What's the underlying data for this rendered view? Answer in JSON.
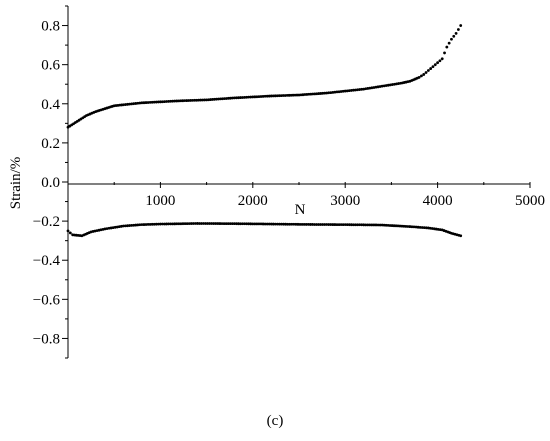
{
  "chart_data": {
    "type": "scatter",
    "xlabel": "N",
    "ylabel": "Strain/%",
    "caption": "(c)",
    "xlim": [
      0,
      5000
    ],
    "ylim": [
      -0.9,
      0.9
    ],
    "x_ticks": [
      1000,
      2000,
      3000,
      4000,
      5000
    ],
    "x_tick_labels": [
      "1000",
      "2000",
      "3000",
      "4000",
      "5000"
    ],
    "y_ticks": [
      0.8,
      0.6,
      0.4,
      0.2,
      0.0,
      -0.2,
      -0.4,
      -0.6,
      -0.8
    ],
    "y_tick_labels": [
      "0.8",
      "0.6",
      "0.4",
      "0.2",
      "0.0",
      "−0.2",
      "−0.4",
      "−0.6",
      "−0.8"
    ],
    "marker_color": "#000000",
    "series": [
      {
        "points": [
          [
            0,
            0.28
          ],
          [
            100,
            0.31
          ],
          [
            200,
            0.34
          ],
          [
            300,
            0.36
          ],
          [
            400,
            0.375
          ],
          [
            500,
            0.39
          ],
          [
            600,
            0.395
          ],
          [
            800,
            0.405
          ],
          [
            1000,
            0.41
          ],
          [
            1200,
            0.415
          ],
          [
            1500,
            0.42
          ],
          [
            1800,
            0.43
          ],
          [
            2000,
            0.435
          ],
          [
            2200,
            0.44
          ],
          [
            2500,
            0.445
          ],
          [
            2800,
            0.455
          ],
          [
            3000,
            0.465
          ],
          [
            3200,
            0.475
          ],
          [
            3400,
            0.49
          ],
          [
            3600,
            0.505
          ],
          [
            3700,
            0.515
          ],
          [
            3800,
            0.535
          ],
          [
            3850,
            0.55
          ],
          [
            3900,
            0.57
          ],
          [
            3950,
            0.59
          ],
          [
            4000,
            0.61
          ],
          [
            4050,
            0.63
          ],
          [
            4100,
            0.69
          ],
          [
            4150,
            0.73
          ],
          [
            4200,
            0.76
          ],
          [
            4250,
            0.8
          ]
        ]
      },
      {
        "points": [
          [
            0,
            -0.25
          ],
          [
            50,
            -0.27
          ],
          [
            150,
            -0.275
          ],
          [
            250,
            -0.255
          ],
          [
            400,
            -0.24
          ],
          [
            600,
            -0.225
          ],
          [
            800,
            -0.218
          ],
          [
            1000,
            -0.215
          ],
          [
            1400,
            -0.212
          ],
          [
            1800,
            -0.213
          ],
          [
            2200,
            -0.215
          ],
          [
            2600,
            -0.217
          ],
          [
            3000,
            -0.218
          ],
          [
            3400,
            -0.22
          ],
          [
            3700,
            -0.228
          ],
          [
            3900,
            -0.235
          ],
          [
            4050,
            -0.245
          ],
          [
            4150,
            -0.262
          ],
          [
            4250,
            -0.275
          ]
        ]
      }
    ]
  }
}
